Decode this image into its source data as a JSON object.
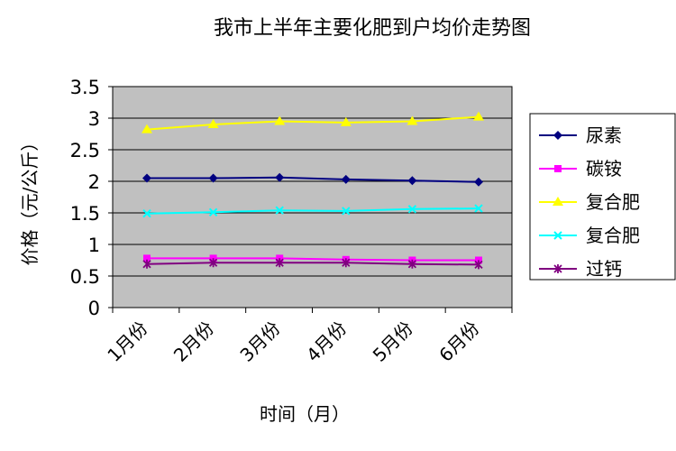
{
  "chart_data": {
    "type": "line",
    "title": "我市上半年主要化肥到户均价走势图",
    "xlabel": "时间（月）",
    "ylabel": "价格（元/公斤）",
    "categories": [
      "1月份",
      "2月份",
      "3月份",
      "4月份",
      "5月份",
      "6月份"
    ],
    "ylim": [
      0,
      3.5
    ],
    "yticks": [
      "0",
      "0.5",
      "1",
      "1.5",
      "2",
      "2.5",
      "3",
      "3.5"
    ],
    "grid": true,
    "plot_background": "#c0c0c0",
    "legend_position": "right",
    "series": [
      {
        "name": "尿素",
        "values": [
          2.05,
          2.05,
          2.06,
          2.03,
          2.01,
          1.99
        ],
        "color": "#000080",
        "marker": "diamond"
      },
      {
        "name": "碳铵",
        "values": [
          0.78,
          0.78,
          0.78,
          0.76,
          0.75,
          0.75
        ],
        "color": "#ff00ff",
        "marker": "square"
      },
      {
        "name": "复合肥",
        "values": [
          2.82,
          2.9,
          2.95,
          2.93,
          2.95,
          3.02
        ],
        "color": "#ffff00",
        "marker": "triangle"
      },
      {
        "name": "复合肥",
        "values": [
          1.49,
          1.51,
          1.54,
          1.53,
          1.56,
          1.57
        ],
        "color": "#00ffff",
        "marker": "x"
      },
      {
        "name": "过钙",
        "values": [
          0.69,
          0.71,
          0.71,
          0.71,
          0.69,
          0.68
        ],
        "color": "#800080",
        "marker": "star"
      }
    ]
  }
}
